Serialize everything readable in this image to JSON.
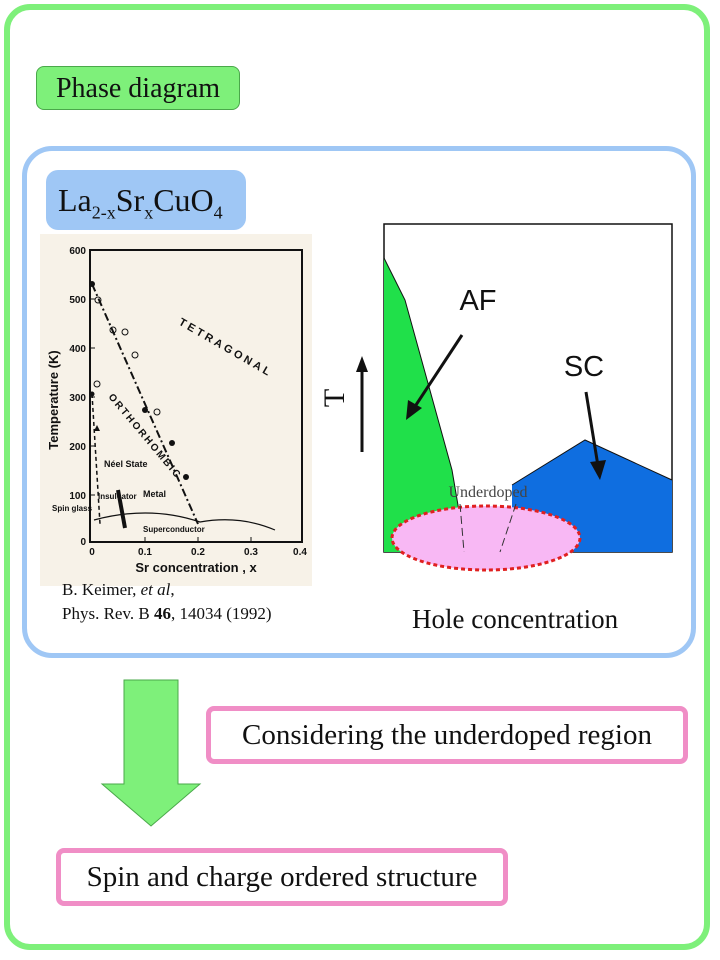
{
  "title": "Phase diagram",
  "formula": {
    "base1": "La",
    "sub1": "2-x",
    "base2": "Sr",
    "sub2": "x",
    "base3": "CuO",
    "sub3": "4"
  },
  "citation": {
    "line1_prefix": "B. Keimer, ",
    "line1_italic": "et al",
    "line1_suffix": ",",
    "line2_prefix": "Phys. Rev. B ",
    "line2_bold": "46",
    "line2_suffix": ", 14034 (1992)"
  },
  "scan_plot": {
    "ylabel": "Temperature (K)",
    "xlabel": "Sr concentration , x",
    "yticks": [
      "600",
      "500",
      "400",
      "300",
      "200",
      "100",
      "0"
    ],
    "xticks": [
      "0",
      "0.1",
      "0.2",
      "0.3",
      "0.4"
    ],
    "labels": {
      "tetragonal": "TETRAGONAL",
      "orthorhombic": "ORTHORHOMBIC",
      "neel": "Néel State",
      "insulator": "Insul-\nator",
      "spin_glass": "Spin\nglass",
      "metal": "Metal",
      "superconductor": "Superconductor"
    }
  },
  "schematic": {
    "af_label": "AF",
    "sc_label": "SC",
    "underdoped_label": "Underdoped",
    "t_label": "T",
    "x_label": "Hole concentration",
    "colors": {
      "af": "#20e04a",
      "sc": "#0f6ee0",
      "underdoped": "#f8b8f4",
      "outline": "#e02020"
    }
  },
  "considering": "Considering the underdoped region",
  "spin_charge": "Spin and charge ordered structure",
  "colors": {
    "frame": "#7ef07a",
    "panel": "#9fc7f5",
    "box": "#f08ec6",
    "arrow": "#7ef07a"
  }
}
